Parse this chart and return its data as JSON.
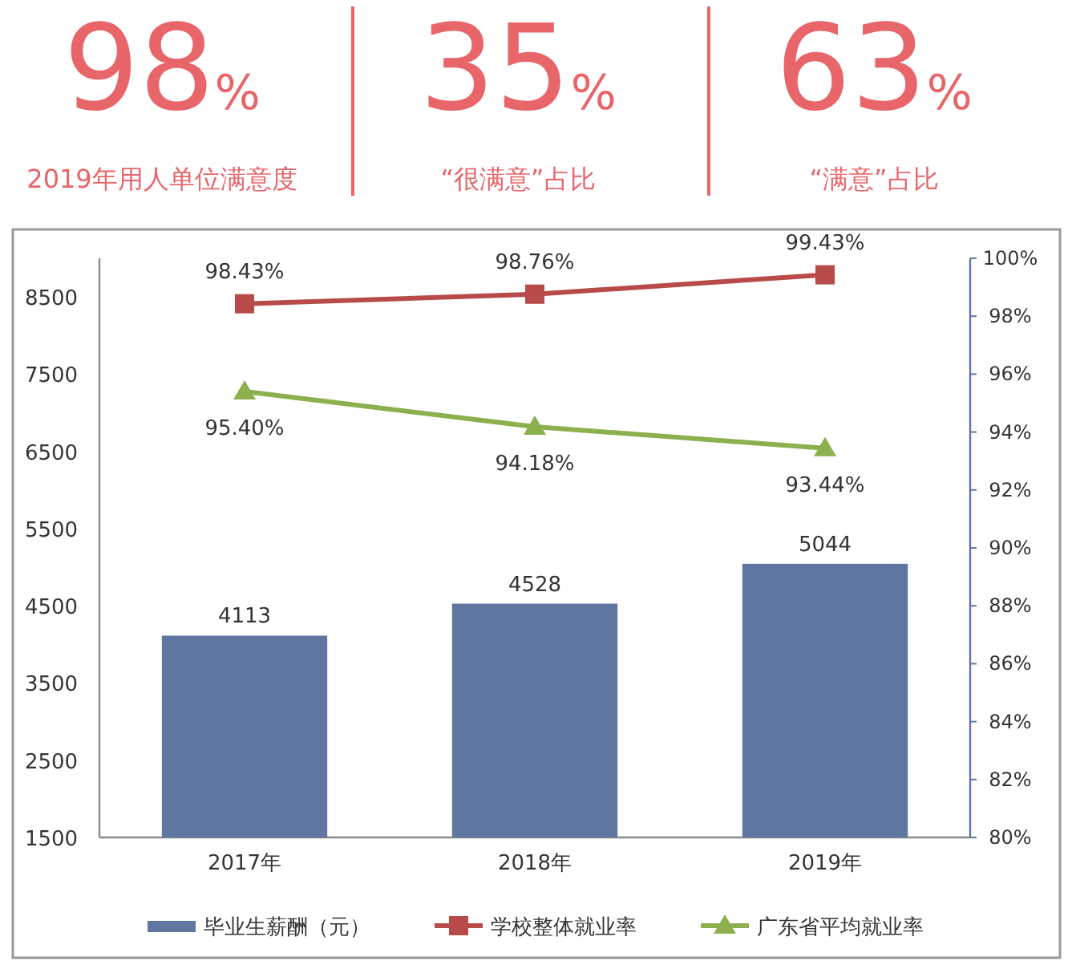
{
  "chart_data": [
    {
      "type": "other",
      "annotations": [
        "98%",
        "2019年用人单位满意度",
        "35%",
        "“很满意”占比",
        "63%",
        "“满意”占比"
      ]
    },
    {
      "type": "bar",
      "categories": [
        "2017年",
        "2018年",
        "2019年"
      ],
      "series": [
        {
          "name": "毕业生薪酬（元）",
          "type": "bar",
          "color": "#5f76a0",
          "values": [
            4113,
            4528,
            5044
          ],
          "value_labels": [
            "4113",
            "4528",
            "5044"
          ]
        },
        {
          "name": "学校整体就业率",
          "type": "line",
          "axis": "y2",
          "marker": "square",
          "color": "#b84a4a",
          "values": [
            98.43,
            98.76,
            99.43
          ],
          "value_labels": [
            "98.43%",
            "98.76%",
            "99.43%"
          ]
        },
        {
          "name": "广东省平均就业率",
          "type": "line",
          "axis": "y2",
          "marker": "triangle",
          "color": "#8db04f",
          "values": [
            95.4,
            94.18,
            93.44
          ],
          "value_labels": [
            "95.40%",
            "94.18%",
            "93.44%"
          ]
        }
      ],
      "ylim": [
        1500,
        9000
      ],
      "yticks": [
        1500,
        2500,
        3500,
        4500,
        5500,
        6500,
        7500,
        8500
      ],
      "y2lim": [
        80,
        100
      ],
      "y2ticks": [
        {
          "value": 80,
          "label": "80%"
        },
        {
          "value": 82,
          "label": "82%"
        },
        {
          "value": 84,
          "label": "84%"
        },
        {
          "value": 86,
          "label": "86%"
        },
        {
          "value": 88,
          "label": "88%"
        },
        {
          "value": 90,
          "label": "90%"
        },
        {
          "value": 92,
          "label": "92%"
        },
        {
          "value": 94,
          "label": "94%"
        },
        {
          "value": 96,
          "label": "96%"
        },
        {
          "value": 98,
          "label": "98%"
        },
        {
          "value": 100,
          "label": "100%"
        }
      ],
      "grid": false,
      "legend": "bottom"
    }
  ]
}
